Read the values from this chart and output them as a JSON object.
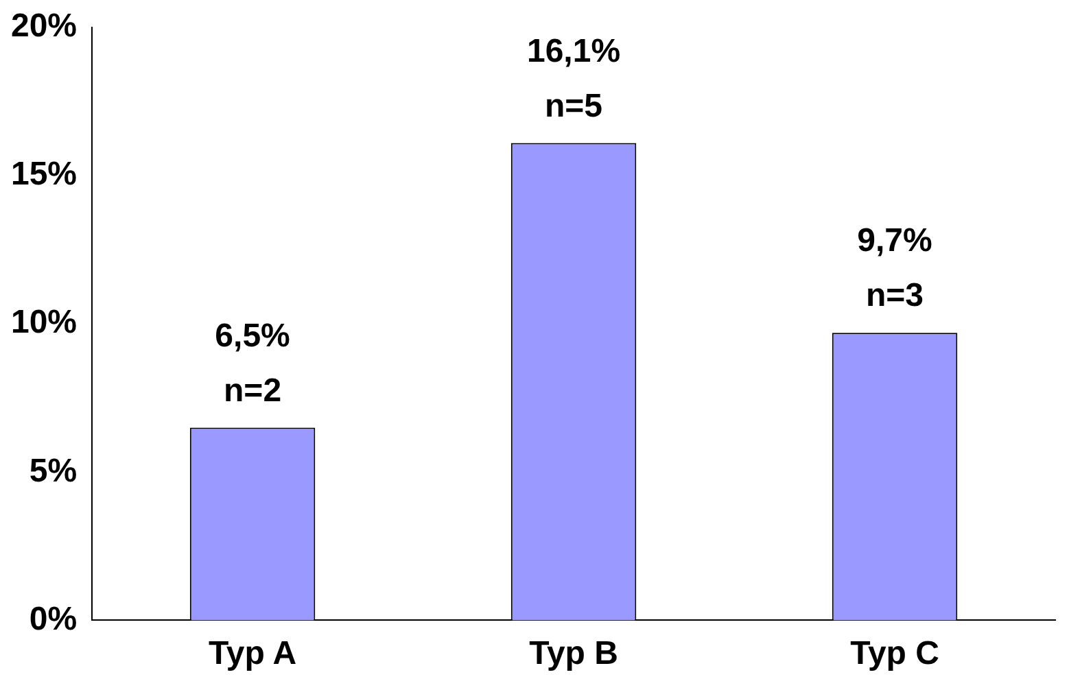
{
  "chart_data": {
    "type": "bar",
    "categories": [
      "Typ A",
      "Typ B",
      "Typ C"
    ],
    "values": [
      6.5,
      16.1,
      9.7
    ],
    "color": "#9999ff",
    "value_labels": [
      "6,5%\nn=2",
      "16,1%\nn=5",
      "9,7%\nn=3"
    ],
    "ylim": [
      0,
      20
    ],
    "yticks": [
      {
        "value": 0,
        "label": "0%"
      },
      {
        "value": 5,
        "label": "5%"
      },
      {
        "value": 10,
        "label": "10%"
      },
      {
        "value": 15,
        "label": "15%"
      },
      {
        "value": 20,
        "label": "20%"
      }
    ],
    "grid": false,
    "legend": false
  }
}
